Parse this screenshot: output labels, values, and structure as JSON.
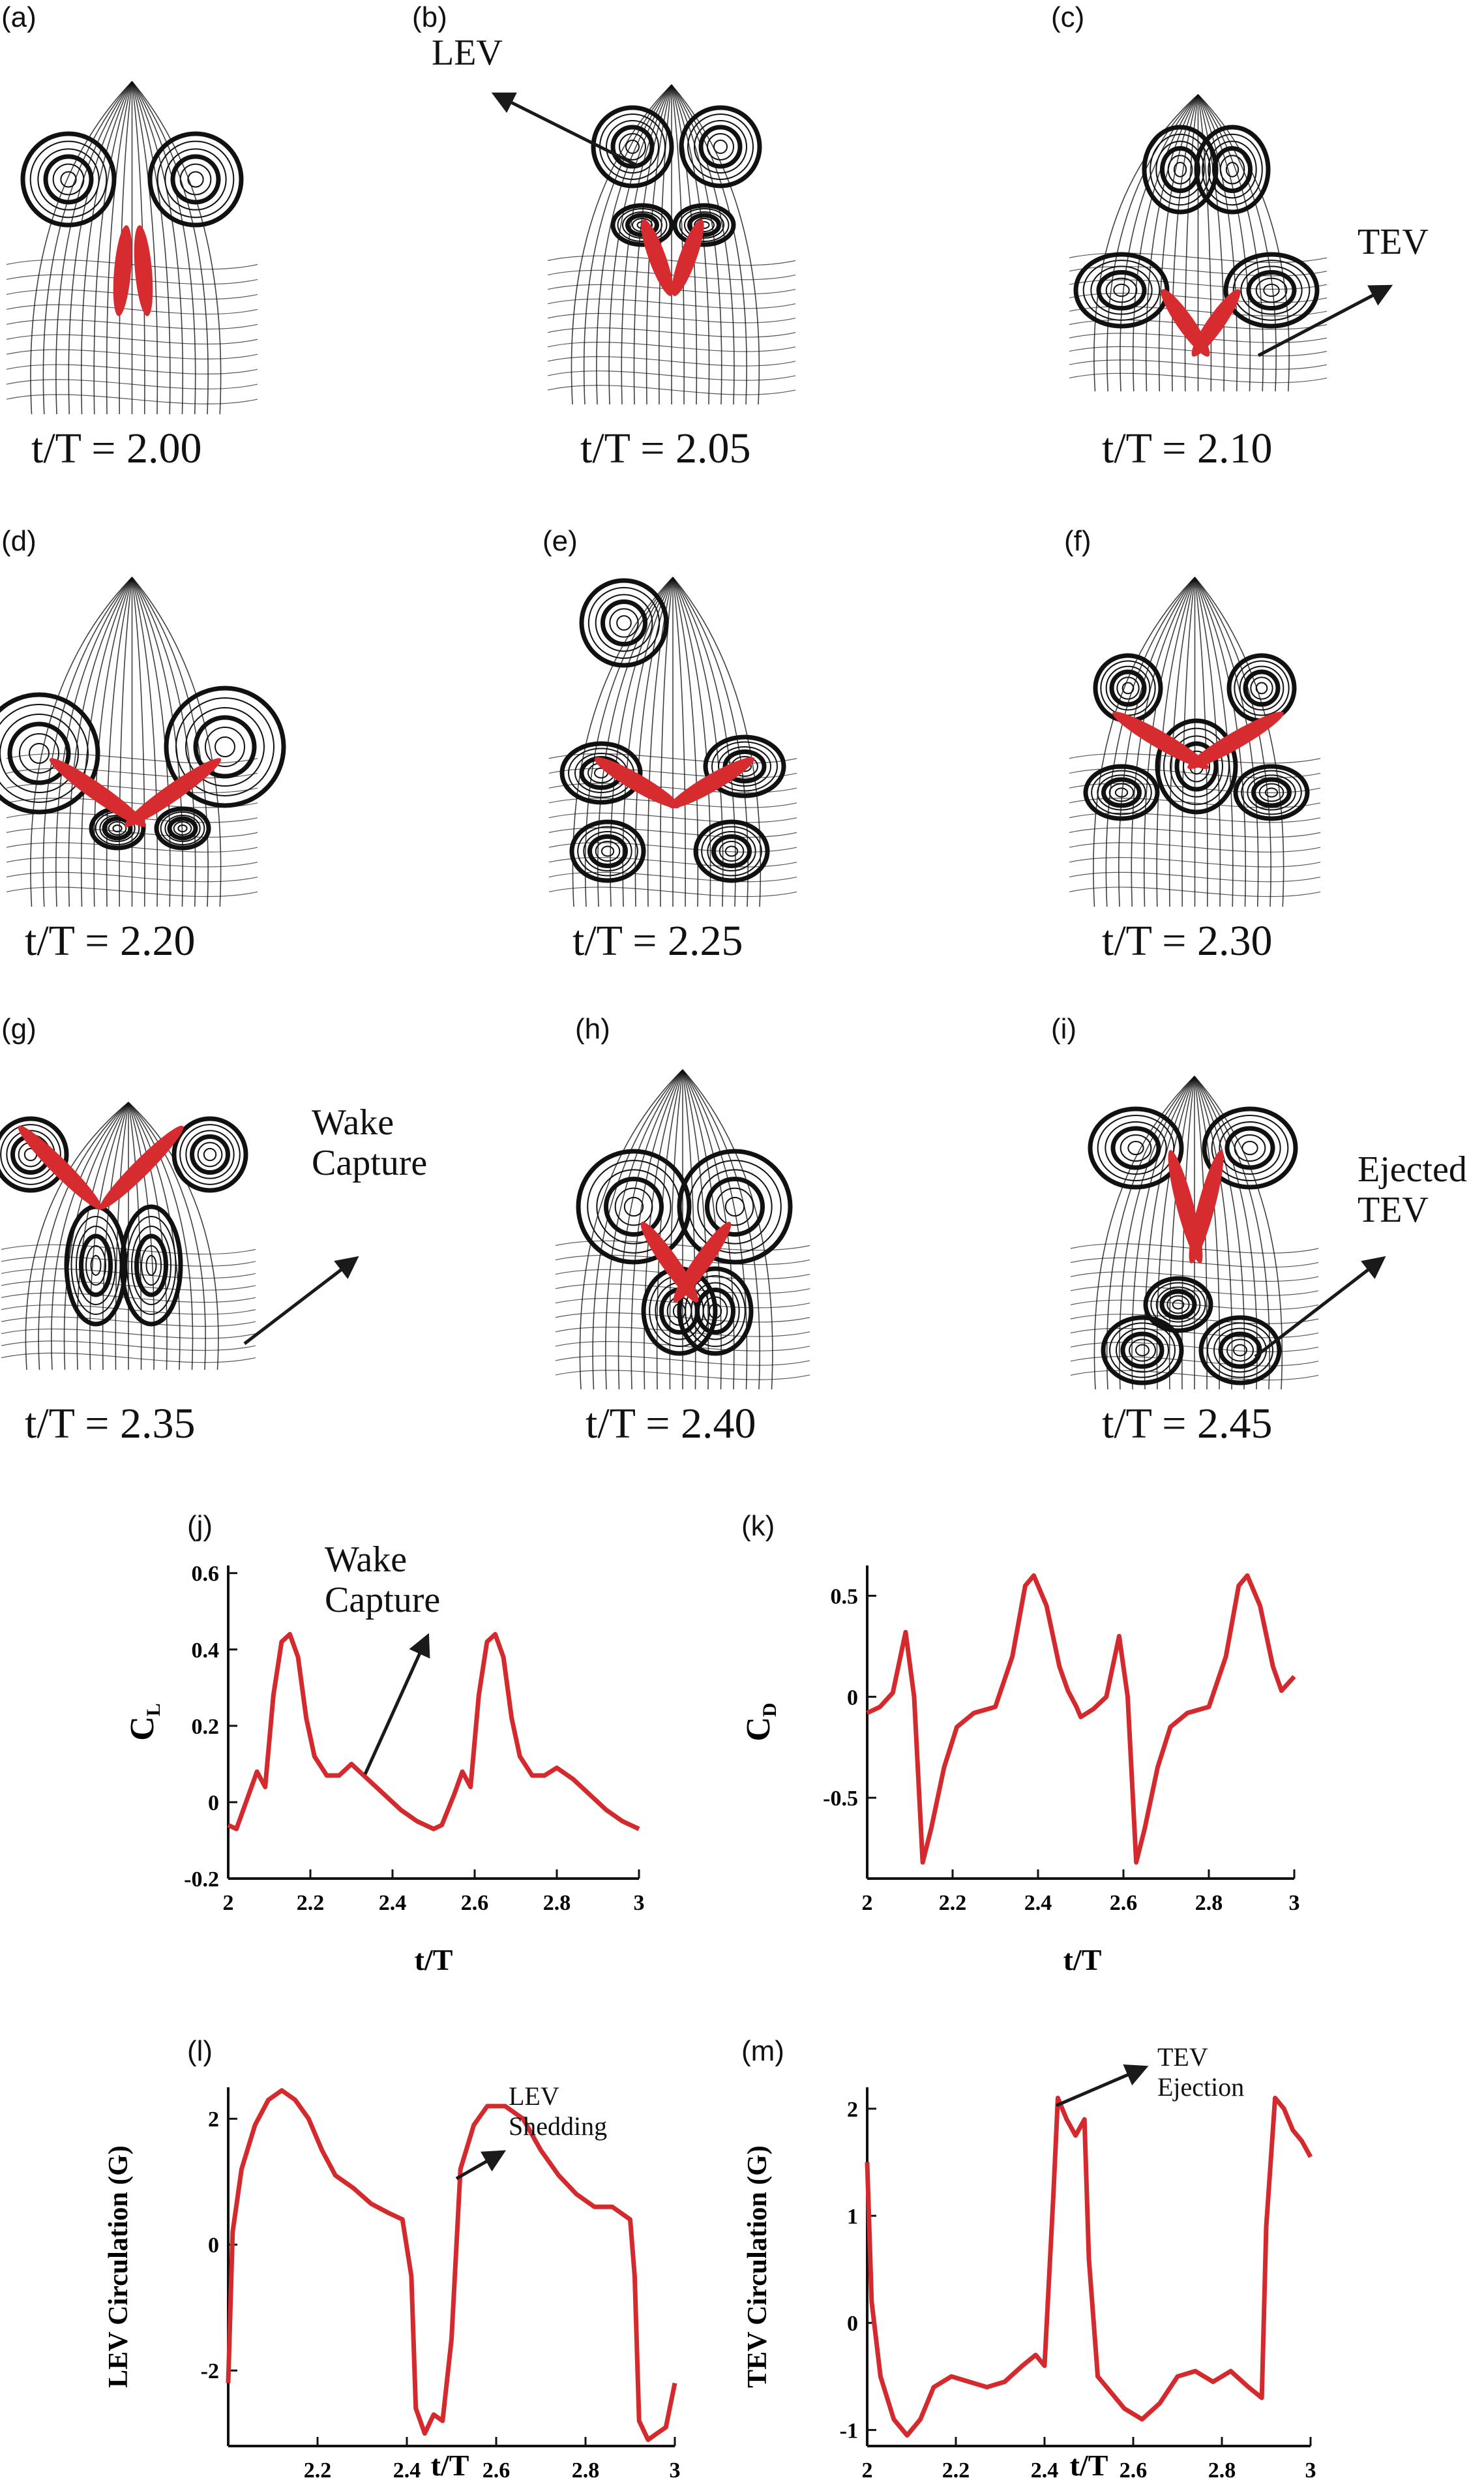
{
  "figure": {
    "panels": [
      {
        "letter": "(a)",
        "time": "t/T = 2.00"
      },
      {
        "letter": "(b)",
        "time": "t/T = 2.05"
      },
      {
        "letter": "(c)",
        "time": "t/T = 2.10"
      },
      {
        "letter": "(d)",
        "time": "t/T = 2.20"
      },
      {
        "letter": "(e)",
        "time": "t/T = 2.25"
      },
      {
        "letter": "(f)",
        "time": "t/T = 2.30"
      },
      {
        "letter": "(g)",
        "time": "t/T = 2.35"
      },
      {
        "letter": "(h)",
        "time": "t/T = 2.40"
      },
      {
        "letter": "(i)",
        "time": "t/T = 2.45"
      }
    ],
    "annotations": {
      "lev": "LEV",
      "tev": "TEV",
      "wake_capture_1": "Wake",
      "wake_capture_2": "Capture",
      "ejected_1": "Ejected",
      "ejected_2": "TEV"
    },
    "plot_letters": {
      "j": "(j)",
      "k": "(k)",
      "l": "(l)",
      "m": "(m)"
    },
    "plot_annotations": {
      "j_1": "Wake",
      "j_2": "Capture",
      "l_1": "LEV",
      "l_2": "Shedding",
      "m_1": "TEV",
      "m_2": "Ejection"
    },
    "colors": {
      "curve": "#d42a2e",
      "wing": "#d62b2f",
      "ink": "#111111"
    }
  },
  "chart_data": [
    {
      "type": "line",
      "id": "j",
      "ylabel": "C",
      "ylabel_sub": "L",
      "xlabel": "t/T",
      "xlim": [
        2,
        3
      ],
      "ylim": [
        -0.2,
        0.62
      ],
      "xticks": [
        "2",
        "2.2",
        "2.4",
        "2.6",
        "2.8",
        "3"
      ],
      "xtick_values": [
        2,
        2.2,
        2.4,
        2.6,
        2.8,
        3
      ],
      "yticks": [
        "-0.2",
        "0",
        "0.2",
        "0.4",
        "0.6"
      ],
      "ytick_values": [
        -0.2,
        0,
        0.2,
        0.4,
        0.6
      ],
      "series": [
        {
          "x": [
            2.0,
            2.02,
            2.05,
            2.07,
            2.09,
            2.11,
            2.13,
            2.15,
            2.17,
            2.19,
            2.21,
            2.24,
            2.27,
            2.3,
            2.34,
            2.38,
            2.42,
            2.46,
            2.5,
            2.52,
            2.55,
            2.57,
            2.59,
            2.61,
            2.63,
            2.65,
            2.67,
            2.69,
            2.71,
            2.74,
            2.77,
            2.8,
            2.84,
            2.88,
            2.92,
            2.96,
            3.0
          ],
          "y": [
            -0.06,
            -0.07,
            0.02,
            0.08,
            0.04,
            0.28,
            0.42,
            0.44,
            0.38,
            0.22,
            0.12,
            0.07,
            0.07,
            0.1,
            0.06,
            0.02,
            -0.02,
            -0.05,
            -0.07,
            -0.06,
            0.02,
            0.08,
            0.04,
            0.28,
            0.42,
            0.44,
            0.38,
            0.22,
            0.12,
            0.07,
            0.07,
            0.09,
            0.06,
            0.02,
            -0.02,
            -0.05,
            -0.07
          ]
        }
      ]
    },
    {
      "type": "line",
      "id": "k",
      "ylabel": "C",
      "ylabel_sub": "D",
      "xlabel": "t/T",
      "xlim": [
        2,
        3
      ],
      "ylim": [
        -0.9,
        0.65
      ],
      "xticks": [
        "2",
        "2.2",
        "2.4",
        "2.6",
        "2.8",
        "3"
      ],
      "xtick_values": [
        2,
        2.2,
        2.4,
        2.6,
        2.8,
        3
      ],
      "yticks": [
        "-0.5",
        "0",
        "0.5"
      ],
      "ytick_values": [
        -0.5,
        0,
        0.5
      ],
      "series": [
        {
          "x": [
            2.0,
            2.03,
            2.06,
            2.09,
            2.11,
            2.13,
            2.15,
            2.18,
            2.21,
            2.25,
            2.3,
            2.34,
            2.37,
            2.39,
            2.42,
            2.45,
            2.47,
            2.49,
            2.5,
            2.53,
            2.56,
            2.59,
            2.61,
            2.63,
            2.65,
            2.68,
            2.71,
            2.75,
            2.8,
            2.84,
            2.87,
            2.89,
            2.92,
            2.95,
            2.97,
            3.0
          ],
          "y": [
            -0.08,
            -0.05,
            0.02,
            0.32,
            0.0,
            -0.82,
            -0.65,
            -0.35,
            -0.15,
            -0.08,
            -0.05,
            0.2,
            0.55,
            0.6,
            0.45,
            0.15,
            0.03,
            -0.05,
            -0.1,
            -0.06,
            0.0,
            0.3,
            0.0,
            -0.82,
            -0.65,
            -0.35,
            -0.15,
            -0.08,
            -0.05,
            0.2,
            0.55,
            0.6,
            0.45,
            0.15,
            0.03,
            0.1
          ]
        }
      ]
    },
    {
      "type": "line",
      "id": "l",
      "ylabel": "LEV Circulation (G)",
      "xlabel": "t/T",
      "xlim": [
        2,
        3
      ],
      "ylim": [
        -3.2,
        2.5
      ],
      "xticks": [
        "2.2",
        "2.4",
        "2.6",
        "2.8",
        "3"
      ],
      "xtick_values": [
        2.2,
        2.4,
        2.6,
        2.8,
        3
      ],
      "yticks": [
        "-2",
        "0",
        "2"
      ],
      "ytick_values": [
        -2,
        0,
        2
      ],
      "series": [
        {
          "x": [
            2.0,
            2.01,
            2.03,
            2.06,
            2.09,
            2.12,
            2.15,
            2.18,
            2.21,
            2.24,
            2.28,
            2.32,
            2.36,
            2.39,
            2.41,
            2.42,
            2.44,
            2.46,
            2.48,
            2.5,
            2.52,
            2.55,
            2.58,
            2.62,
            2.66,
            2.7,
            2.74,
            2.78,
            2.82,
            2.86,
            2.9,
            2.91,
            2.92,
            2.94,
            2.96,
            2.98,
            3.0
          ],
          "y": [
            -2.2,
            0.2,
            1.2,
            1.9,
            2.3,
            2.45,
            2.3,
            2.0,
            1.5,
            1.1,
            0.9,
            0.65,
            0.5,
            0.4,
            -0.5,
            -2.6,
            -3.0,
            -2.7,
            -2.8,
            -1.5,
            1.2,
            1.9,
            2.2,
            2.2,
            2.0,
            1.5,
            1.1,
            0.8,
            0.6,
            0.6,
            0.4,
            -0.5,
            -2.8,
            -3.1,
            -3.0,
            -2.9,
            -2.2
          ]
        }
      ]
    },
    {
      "type": "line",
      "id": "m",
      "ylabel": "TEV Circulation (G)",
      "xlabel": "t/T",
      "xlim": [
        2,
        3
      ],
      "ylim": [
        -1.15,
        2.2
      ],
      "xticks": [
        "2",
        "2.2",
        "2.4",
        "2.6",
        "2.8",
        "3"
      ],
      "xtick_values": [
        2,
        2.2,
        2.4,
        2.6,
        2.8,
        3
      ],
      "yticks": [
        "-1",
        "0",
        "1",
        "2"
      ],
      "ytick_values": [
        -1,
        0,
        1,
        2
      ],
      "series": [
        {
          "x": [
            2.0,
            2.01,
            2.03,
            2.06,
            2.09,
            2.12,
            2.15,
            2.19,
            2.23,
            2.27,
            2.31,
            2.35,
            2.38,
            2.4,
            2.42,
            2.43,
            2.45,
            2.47,
            2.49,
            2.5,
            2.52,
            2.55,
            2.58,
            2.62,
            2.66,
            2.7,
            2.74,
            2.78,
            2.82,
            2.86,
            2.89,
            2.9,
            2.92,
            2.94,
            2.96,
            2.98,
            3.0
          ],
          "y": [
            1.5,
            0.2,
            -0.5,
            -0.9,
            -1.05,
            -0.9,
            -0.6,
            -0.5,
            -0.55,
            -0.6,
            -0.55,
            -0.4,
            -0.3,
            -0.4,
            1.2,
            2.1,
            1.9,
            1.75,
            1.9,
            0.6,
            -0.5,
            -0.65,
            -0.8,
            -0.9,
            -0.75,
            -0.5,
            -0.45,
            -0.55,
            -0.45,
            -0.6,
            -0.7,
            0.9,
            2.1,
            2.0,
            1.8,
            1.7,
            1.55
          ]
        }
      ]
    }
  ]
}
